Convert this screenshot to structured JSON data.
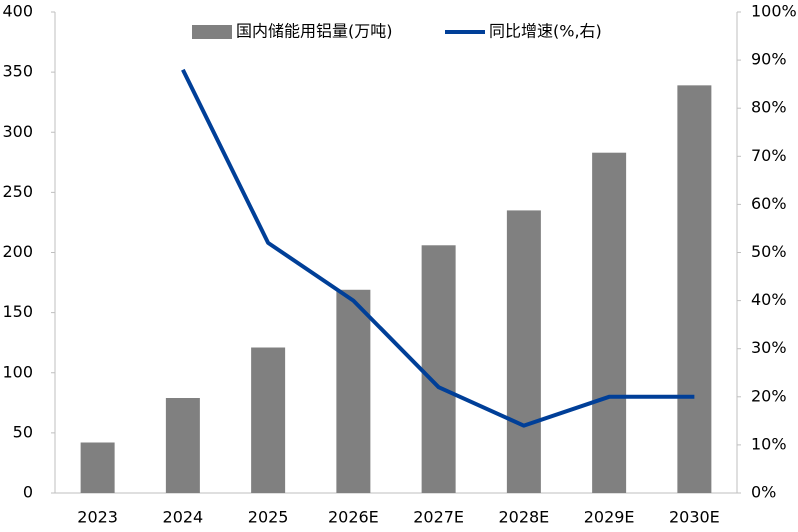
{
  "chart_data": {
    "type": "bar",
    "categories": [
      "2023",
      "2024",
      "2025",
      "2026E",
      "2027E",
      "2028E",
      "2029E",
      "2030E"
    ],
    "series": [
      {
        "name": "国内储能用铝量(万吨)",
        "type": "bar",
        "color": "#808080",
        "values": [
          42,
          79,
          121,
          169,
          206,
          235,
          283,
          339
        ]
      },
      {
        "name": "同比增速(%,右)",
        "type": "line",
        "axis": "y2",
        "color": "#003f98",
        "values": [
          null,
          88,
          52,
          40,
          22,
          14,
          20,
          20
        ]
      }
    ],
    "ylim": [
      0,
      400
    ],
    "yticks": [
      0,
      50,
      100,
      150,
      200,
      250,
      300,
      350,
      400
    ],
    "y2lim": [
      0,
      100
    ],
    "y2ticks": [
      {
        "value": 0,
        "label": "0%"
      },
      {
        "value": 10,
        "label": "10%"
      },
      {
        "value": 20,
        "label": "20%"
      },
      {
        "value": 30,
        "label": "30%"
      },
      {
        "value": 40,
        "label": "40%"
      },
      {
        "value": 50,
        "label": "50%"
      },
      {
        "value": 60,
        "label": "60%"
      },
      {
        "value": 70,
        "label": "70%"
      },
      {
        "value": 80,
        "label": "80%"
      },
      {
        "value": 90,
        "label": "90%"
      },
      {
        "value": 100,
        "label": "100%"
      }
    ],
    "grid": false,
    "legend": "top"
  }
}
